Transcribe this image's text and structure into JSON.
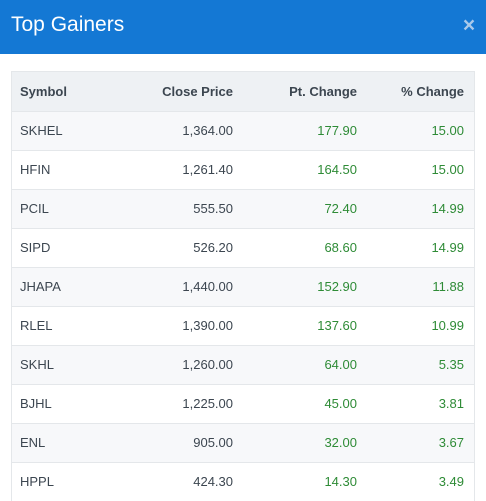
{
  "header": {
    "title": "Top Gainers",
    "close_glyph": "×"
  },
  "table": {
    "columns": [
      "Symbol",
      "Close Price",
      "Pt. Change",
      "% Change"
    ],
    "rows": [
      {
        "symbol": "SKHEL",
        "close": "1,364.00",
        "pt_change": "177.90",
        "pct_change": "15.00"
      },
      {
        "symbol": "HFIN",
        "close": "1,261.40",
        "pt_change": "164.50",
        "pct_change": "15.00"
      },
      {
        "symbol": "PCIL",
        "close": "555.50",
        "pt_change": "72.40",
        "pct_change": "14.99"
      },
      {
        "symbol": "SIPD",
        "close": "526.20",
        "pt_change": "68.60",
        "pct_change": "14.99"
      },
      {
        "symbol": "JHAPA",
        "close": "1,440.00",
        "pt_change": "152.90",
        "pct_change": "11.88"
      },
      {
        "symbol": "RLEL",
        "close": "1,390.00",
        "pt_change": "137.60",
        "pct_change": "10.99"
      },
      {
        "symbol": "SKHL",
        "close": "1,260.00",
        "pt_change": "64.00",
        "pct_change": "5.35"
      },
      {
        "symbol": "BJHL",
        "close": "1,225.00",
        "pt_change": "45.00",
        "pct_change": "3.81"
      },
      {
        "symbol": "ENL",
        "close": "905.00",
        "pt_change": "32.00",
        "pct_change": "3.67"
      },
      {
        "symbol": "HPPL",
        "close": "424.30",
        "pt_change": "14.30",
        "pct_change": "3.49"
      }
    ]
  },
  "colors": {
    "header_bg": "#1478d4",
    "positive": "#2e8b36",
    "header_row_bg": "#eef1f4"
  },
  "icons": {
    "close": "close-icon"
  }
}
